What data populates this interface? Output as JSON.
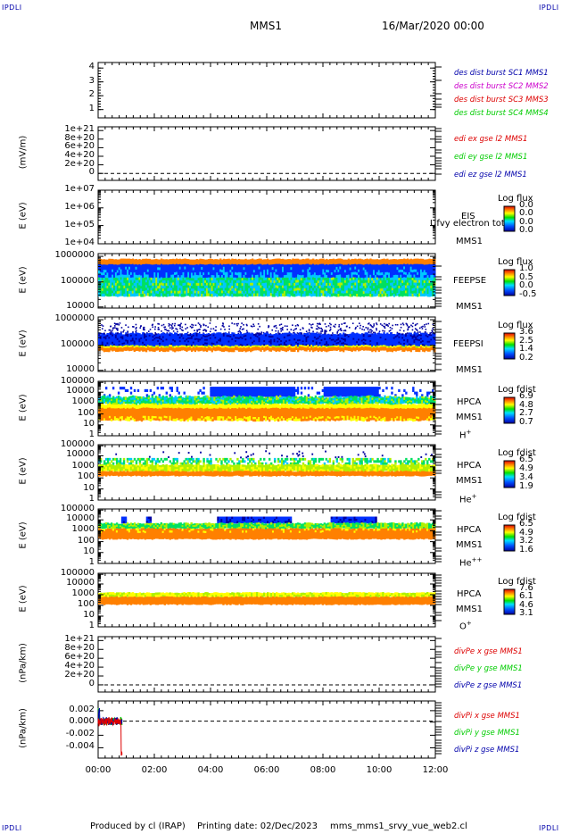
{
  "header": {
    "corner_tl": "IPDLI",
    "corner_tr": "IPDLI",
    "corner_bl": "IPDLI",
    "corner_br": "IPDLI",
    "mission": "MMS1",
    "date": "16/Mar/2020 00:00"
  },
  "footer": {
    "produced": "Produced by cl (IRAP)",
    "printing": "Printing date: 02/Dec/2023",
    "script": "mms_mms1_srvy_vue_web2.cl"
  },
  "colors": {
    "red": "#dd0000",
    "magenta": "#cc00cc",
    "green": "#00cc00",
    "blue": "#0000aa"
  },
  "chart_data": [
    {
      "type": "line",
      "panel": "burst",
      "ylabel": "",
      "ylim": [
        0.5,
        4.5
      ],
      "yticks": [
        "4",
        "3",
        "2",
        "1"
      ],
      "xticks": [
        "00:00",
        "02:00",
        "04:00",
        "06:00",
        "08:00",
        "10:00",
        "12:00"
      ],
      "legend": [
        {
          "text": "des dist burst SC1 MMS1",
          "color": "#0000aa"
        },
        {
          "text": "des dist burst SC2 MMS2",
          "color": "#cc00cc"
        },
        {
          "text": "des dist burst SC3 MMS3",
          "color": "#dd0000"
        },
        {
          "text": "des dist burst SC4 MMS4",
          "color": "#00cc00"
        }
      ]
    },
    {
      "type": "line",
      "panel": "edi",
      "ylabel": "(mV/m)",
      "yticks": [
        "1e+21",
        "8e+20",
        "6e+20",
        "4e+20",
        "2e+20",
        "0"
      ],
      "ylim": [
        0,
        1e+21
      ],
      "legend": [
        {
          "text": "edi ex gse l2 MMS1",
          "color": "#dd0000"
        },
        {
          "text": "edi ey gse l2 MMS1",
          "color": "#00cc00"
        },
        {
          "text": "edi ez gse l2 MMS1",
          "color": "#0000aa"
        }
      ]
    },
    {
      "type": "heatmap",
      "panel": "eis",
      "ylabel": "E (eV)",
      "yscale": "log",
      "yticks": [
        "1e+07",
        "1e+06",
        "1e+05",
        "1e+04"
      ],
      "ylim": [
        10000.0,
        10000000.0
      ],
      "instrument": "EIS",
      "overlay": "Ufvy electron tot",
      "spacecraft": "MMS1",
      "colorbar_label": "Log flux",
      "colorbar_ticks": [
        "0.0",
        "0.0",
        "0.0",
        "0.0"
      ]
    },
    {
      "type": "heatmap",
      "panel": "feepse",
      "ylabel": "E (eV)",
      "yscale": "log",
      "yticks": [
        "1000000",
        "100000",
        "10000"
      ],
      "ylim": [
        10000.0,
        1000000.0
      ],
      "instrument": "FEEPSE",
      "spacecraft": "MMS1",
      "colorbar_label": "Log flux",
      "colorbar_ticks": [
        "1.0",
        "0.5",
        "0.0",
        "-0.5"
      ]
    },
    {
      "type": "heatmap",
      "panel": "feepsi",
      "ylabel": "E (eV)",
      "yscale": "log",
      "yticks": [
        "1000000",
        "100000",
        "10000"
      ],
      "ylim": [
        10000.0,
        1000000.0
      ],
      "instrument": "FEEPSI",
      "spacecraft": "MMS1",
      "colorbar_label": "Log flux",
      "colorbar_ticks": [
        "3.6",
        "2.5",
        "1.4",
        "0.2"
      ]
    },
    {
      "type": "heatmap",
      "panel": "hpca_h",
      "ylabel": "E (eV)",
      "yscale": "log",
      "yticks": [
        "100000",
        "10000",
        "1000",
        "100",
        "10",
        "1"
      ],
      "ylim": [
        1,
        100000.0
      ],
      "instrument": "HPCA",
      "spacecraft": "MMS1",
      "species": "H",
      "charge": "+",
      "colorbar_label": "Log fdist",
      "colorbar_ticks": [
        "6.9",
        "4.8",
        "2.7",
        "0.7"
      ]
    },
    {
      "type": "heatmap",
      "panel": "hpca_he1",
      "ylabel": "E (eV)",
      "yscale": "log",
      "yticks": [
        "100000",
        "10000",
        "1000",
        "100",
        "10",
        "1"
      ],
      "ylim": [
        1,
        100000.0
      ],
      "instrument": "HPCA",
      "spacecraft": "MMS1",
      "species": "He",
      "charge": "+",
      "colorbar_label": "Log fdist",
      "colorbar_ticks": [
        "6.5",
        "4.9",
        "3.4",
        "1.9"
      ]
    },
    {
      "type": "heatmap",
      "panel": "hpca_he2",
      "ylabel": "E (eV)",
      "yscale": "log",
      "yticks": [
        "100000",
        "10000",
        "1000",
        "100",
        "10",
        "1"
      ],
      "ylim": [
        1,
        100000.0
      ],
      "instrument": "HPCA",
      "spacecraft": "MMS1",
      "species": "He",
      "charge": "++",
      "colorbar_label": "Log fdist",
      "colorbar_ticks": [
        "6.5",
        "4.9",
        "3.2",
        "1.6"
      ]
    },
    {
      "type": "heatmap",
      "panel": "hpca_o",
      "ylabel": "E (eV)",
      "yscale": "log",
      "yticks": [
        "100000",
        "10000",
        "1000",
        "100",
        "10",
        "1"
      ],
      "ylim": [
        1,
        100000.0
      ],
      "instrument": "HPCA",
      "spacecraft": "MMS1",
      "species": "O",
      "charge": "+",
      "colorbar_label": "Log fdist",
      "colorbar_ticks": [
        "7.6",
        "6.1",
        "4.6",
        "3.1"
      ]
    },
    {
      "type": "line",
      "panel": "divpe",
      "ylabel": "(nPa/km)",
      "yticks": [
        "1e+21",
        "8e+20",
        "6e+20",
        "4e+20",
        "2e+20",
        "0"
      ],
      "ylim": [
        0,
        1e+21
      ],
      "legend": [
        {
          "text": "divPe x gse MMS1",
          "color": "#dd0000"
        },
        {
          "text": "divPe y gse MMS1",
          "color": "#00cc00"
        },
        {
          "text": "divPe z gse MMS1",
          "color": "#0000aa"
        }
      ]
    },
    {
      "type": "line",
      "panel": "divpi",
      "ylabel": "(nPa/km)",
      "yticks": [
        "0.002",
        "0.000",
        "-0.002",
        "-0.004"
      ],
      "ylim": [
        -0.0055,
        0.003
      ],
      "legend": [
        {
          "text": "divPi x gse MMS1",
          "color": "#dd0000"
        },
        {
          "text": "divPi y gse MMS1",
          "color": "#00cc00"
        },
        {
          "text": "divPi z gse MMS1",
          "color": "#0000aa"
        }
      ],
      "x_hours_active": [
        0.0,
        0.85
      ]
    }
  ]
}
